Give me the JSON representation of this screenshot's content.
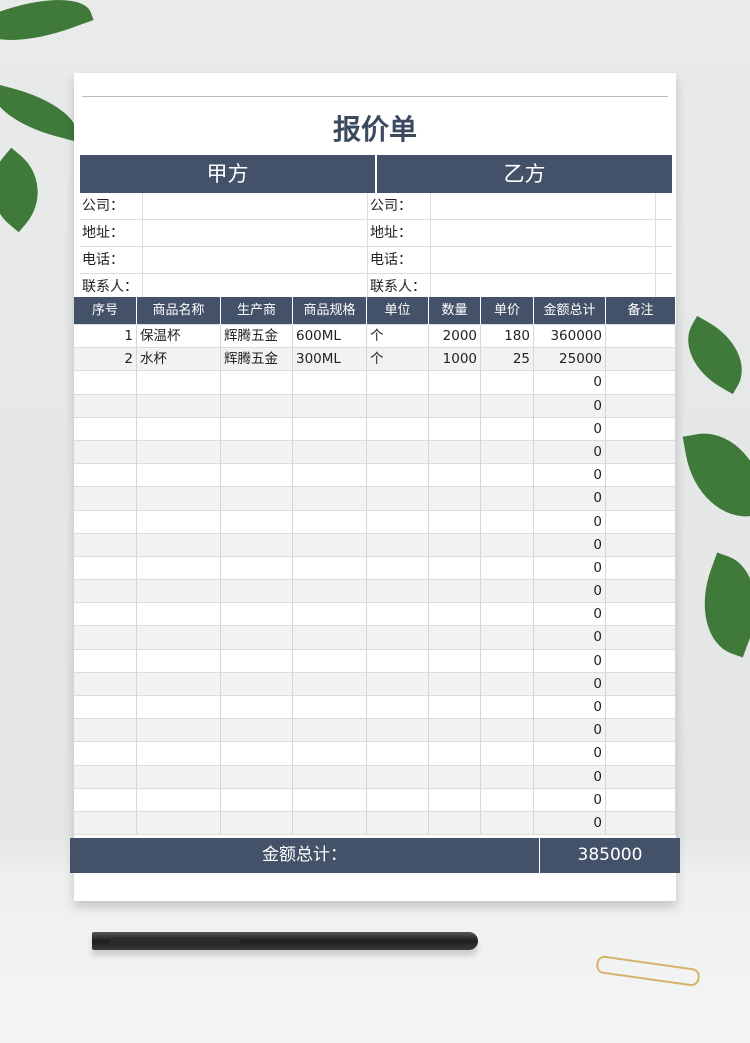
{
  "title": "报价单",
  "parties": {
    "a": "甲方",
    "b": "乙方"
  },
  "info_labels": [
    "公司：",
    "地址：",
    "电话：",
    "联系人："
  ],
  "columns": [
    "序号",
    "商品名称",
    "生产商",
    "商品规格",
    "单位",
    "数量",
    "单价",
    "金额总计",
    "备注"
  ],
  "rows": [
    [
      "1",
      "保温杯",
      "辉腾五金",
      "600ML",
      "个",
      "2000",
      "180",
      "360000",
      ""
    ],
    [
      "2",
      "水杯",
      "辉腾五金",
      "300ML",
      "个",
      "1000",
      "25",
      "25000",
      ""
    ],
    [
      "",
      "",
      "",
      "",
      "",
      "",
      "",
      "0",
      ""
    ],
    [
      "",
      "",
      "",
      "",
      "",
      "",
      "",
      "0",
      ""
    ],
    [
      "",
      "",
      "",
      "",
      "",
      "",
      "",
      "0",
      ""
    ],
    [
      "",
      "",
      "",
      "",
      "",
      "",
      "",
      "0",
      ""
    ],
    [
      "",
      "",
      "",
      "",
      "",
      "",
      "",
      "0",
      ""
    ],
    [
      "",
      "",
      "",
      "",
      "",
      "",
      "",
      "0",
      ""
    ],
    [
      "",
      "",
      "",
      "",
      "",
      "",
      "",
      "0",
      ""
    ],
    [
      "",
      "",
      "",
      "",
      "",
      "",
      "",
      "0",
      ""
    ],
    [
      "",
      "",
      "",
      "",
      "",
      "",
      "",
      "0",
      ""
    ],
    [
      "",
      "",
      "",
      "",
      "",
      "",
      "",
      "0",
      ""
    ],
    [
      "",
      "",
      "",
      "",
      "",
      "",
      "",
      "0",
      ""
    ],
    [
      "",
      "",
      "",
      "",
      "",
      "",
      "",
      "0",
      ""
    ],
    [
      "",
      "",
      "",
      "",
      "",
      "",
      "",
      "0",
      ""
    ],
    [
      "",
      "",
      "",
      "",
      "",
      "",
      "",
      "0",
      ""
    ],
    [
      "",
      "",
      "",
      "",
      "",
      "",
      "",
      "0",
      ""
    ],
    [
      "",
      "",
      "",
      "",
      "",
      "",
      "",
      "0",
      ""
    ],
    [
      "",
      "",
      "",
      "",
      "",
      "",
      "",
      "0",
      ""
    ],
    [
      "",
      "",
      "",
      "",
      "",
      "",
      "",
      "0",
      ""
    ],
    [
      "",
      "",
      "",
      "",
      "",
      "",
      "",
      "0",
      ""
    ],
    [
      "",
      "",
      "",
      "",
      "",
      "",
      "",
      "0",
      ""
    ]
  ],
  "total": {
    "label": "金额总计：",
    "value": "385000"
  },
  "colors": {
    "header": "#435269",
    "title": "#3c4a60"
  }
}
